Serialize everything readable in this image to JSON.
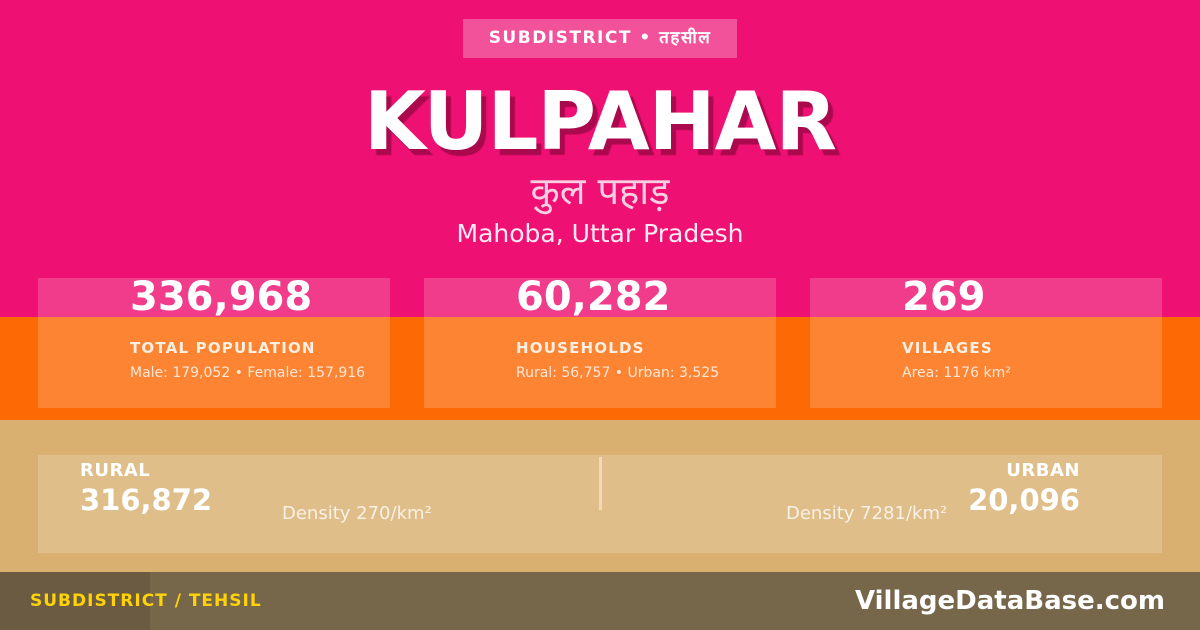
{
  "badge": {
    "label": "SUBDISTRICT • तहसील"
  },
  "header": {
    "title": "KULPAHAR",
    "title_native": "कुल पहाड़",
    "location": "Mahoba, Uttar Pradesh"
  },
  "stats": [
    {
      "value": "336,968",
      "label": "TOTAL POPULATION",
      "detail": "Male: 179,052 • Female: 157,916"
    },
    {
      "value": "60,282",
      "label": "HOUSEHOLDS",
      "detail": "Rural: 56,757 • Urban: 3,525"
    },
    {
      "value": "269",
      "label": "VILLAGES",
      "detail": "Area: 1176 km²"
    }
  ],
  "rural_urban": {
    "rural_label": "RURAL",
    "rural_value": "316,872",
    "rural_density": "Density 270/km²",
    "urban_density": "Density 7281/km²",
    "urban_label": "URBAN",
    "urban_value": "20,096"
  },
  "footer": {
    "left": "SUBDISTRICT / TEHSIL",
    "right": "VillageDataBase.com"
  },
  "colors": {
    "pink": "#EE1072",
    "orange": "#FD6A05",
    "tan": "#DAB071",
    "footer_brown": "#76664A",
    "accent_yellow": "#FFD308",
    "title_shadow": "#9E0848"
  }
}
